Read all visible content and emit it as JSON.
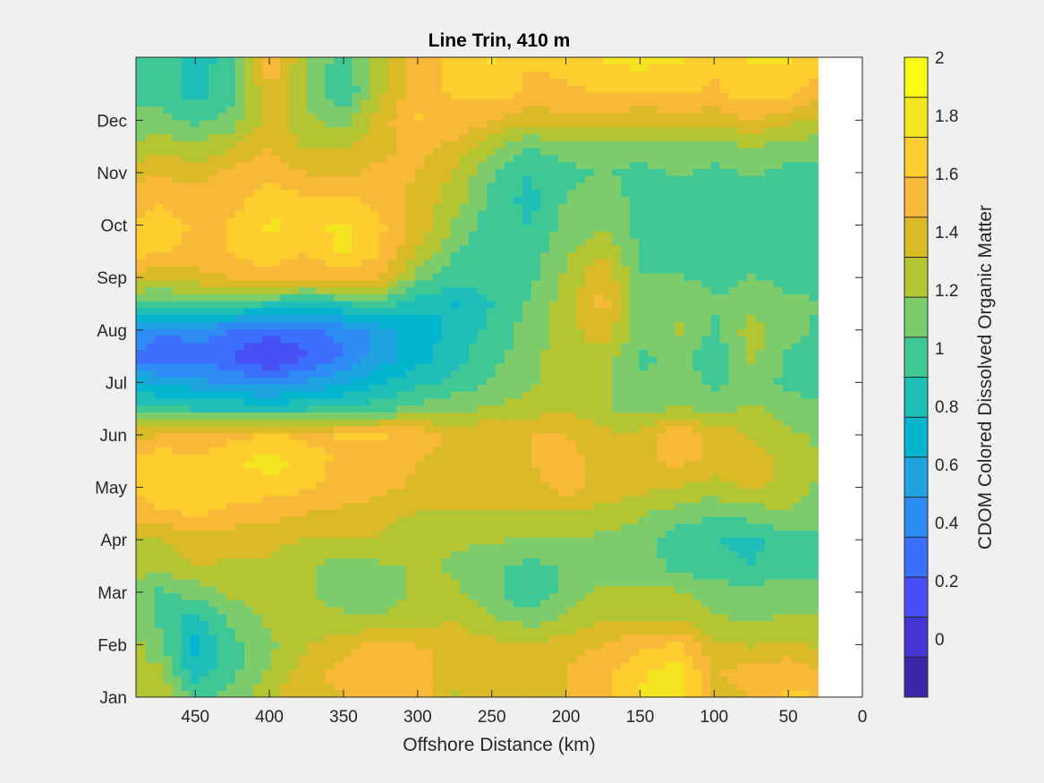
{
  "chart_data": {
    "type": "heatmap",
    "title": "Line Trin, 410 m",
    "xlabel": "Offshore Distance (km)",
    "ylabel": "",
    "colorbar_label": "CDOM Colored Dissolved Organic Matter",
    "x_axis": {
      "reversed": true,
      "xlim": [
        0,
        490
      ],
      "ticks": [
        450,
        400,
        350,
        300,
        250,
        200,
        150,
        100,
        50,
        0
      ],
      "tick_labels": [
        "450",
        "400",
        "350",
        "300",
        "250",
        "200",
        "150",
        "100",
        "50",
        "0"
      ]
    },
    "y_axis": {
      "ylim": [
        0.5,
        12.7
      ],
      "ticks": [
        0.5,
        1.5,
        2.5,
        3.5,
        4.5,
        5.5,
        6.5,
        7.5,
        8.5,
        9.5,
        10.5,
        11.5
      ],
      "tick_labels": [
        "Jan",
        "Feb",
        "Mar",
        "Apr",
        "May",
        "Jun",
        "Jul",
        "Aug",
        "Sep",
        "Oct",
        "Nov",
        "Dec"
      ]
    },
    "colorbar": {
      "clim": [
        -0.2,
        2.0
      ],
      "ticks": [
        0,
        0.2,
        0.4,
        0.6,
        0.8,
        1,
        1.2,
        1.4,
        1.6,
        1.8,
        2
      ],
      "tick_labels": [
        "0",
        "0.2",
        "0.4",
        "0.6",
        "0.8",
        "1",
        "1.2",
        "1.4",
        "1.6",
        "1.8",
        "2"
      ],
      "colormap": [
        "#3e26a8",
        "#4435d4",
        "#4650f4",
        "#3d6ffe",
        "#2e8cf5",
        "#1ea4e0",
        "#04b5d0",
        "#1fbfb8",
        "#3fc896",
        "#7ccc6c",
        "#b3c533",
        "#dbba27",
        "#f8b938",
        "#fece2e",
        "#f5e520",
        "#f9fb15"
      ]
    },
    "x": [
      30,
      50,
      75,
      100,
      125,
      150,
      175,
      200,
      225,
      250,
      275,
      300,
      325,
      350,
      375,
      400,
      425,
      450,
      475,
      490
    ],
    "y_months": [
      0.5,
      1.0,
      1.5,
      2.0,
      2.5,
      3.0,
      3.5,
      4.0,
      4.5,
      5.0,
      5.5,
      6.0,
      6.5,
      7.0,
      7.5,
      8.0,
      8.5,
      9.0,
      9.5,
      10.0,
      10.5,
      11.0,
      11.5,
      12.0,
      12.7
    ],
    "values": [
      [
        1.6,
        1.62,
        1.45,
        1.4,
        1.85,
        1.75,
        1.55,
        1.45,
        1.4,
        1.4,
        1.3,
        1.5,
        1.55,
        1.45,
        1.4,
        1.3,
        1.1,
        1.0,
        1.3,
        1.2
      ],
      [
        1.45,
        1.55,
        1.5,
        1.45,
        1.8,
        1.7,
        1.55,
        1.45,
        1.4,
        1.4,
        1.35,
        1.55,
        1.55,
        1.5,
        1.4,
        1.2,
        1.0,
        0.8,
        1.2,
        1.2
      ],
      [
        1.3,
        1.35,
        1.3,
        1.35,
        1.6,
        1.55,
        1.45,
        1.4,
        1.35,
        1.35,
        1.4,
        1.45,
        1.5,
        1.4,
        1.3,
        1.15,
        1.0,
        0.7,
        1.1,
        1.2
      ],
      [
        1.2,
        1.2,
        1.15,
        1.2,
        1.3,
        1.3,
        1.3,
        1.2,
        1.1,
        1.2,
        1.3,
        1.25,
        1.2,
        1.2,
        1.25,
        1.2,
        1.1,
        0.85,
        1.0,
        1.2
      ],
      [
        1.1,
        1.1,
        1.1,
        1.1,
        1.2,
        1.2,
        1.2,
        1.1,
        0.9,
        1.1,
        1.2,
        1.2,
        1.1,
        1.1,
        1.2,
        1.25,
        1.2,
        1.1,
        1.0,
        1.2
      ],
      [
        1.0,
        1.0,
        0.9,
        0.95,
        1.0,
        1.1,
        1.1,
        1.05,
        1.0,
        1.05,
        1.15,
        1.2,
        1.15,
        1.1,
        1.2,
        1.3,
        1.3,
        1.3,
        1.2,
        1.2
      ],
      [
        1.0,
        1.0,
        0.85,
        0.9,
        0.95,
        1.1,
        1.15,
        1.15,
        1.15,
        1.2,
        1.2,
        1.25,
        1.3,
        1.3,
        1.3,
        1.35,
        1.35,
        1.4,
        1.3,
        1.3
      ],
      [
        1.1,
        1.15,
        1.1,
        1.05,
        1.1,
        1.2,
        1.25,
        1.3,
        1.3,
        1.3,
        1.3,
        1.3,
        1.35,
        1.4,
        1.45,
        1.5,
        1.55,
        1.6,
        1.55,
        1.5
      ],
      [
        1.15,
        1.25,
        1.35,
        1.25,
        1.3,
        1.35,
        1.4,
        1.5,
        1.4,
        1.35,
        1.35,
        1.4,
        1.5,
        1.55,
        1.6,
        1.65,
        1.65,
        1.65,
        1.7,
        1.6
      ],
      [
        1.2,
        1.25,
        1.4,
        1.4,
        1.5,
        1.4,
        1.4,
        1.5,
        1.45,
        1.4,
        1.4,
        1.45,
        1.55,
        1.55,
        1.65,
        1.8,
        1.7,
        1.65,
        1.7,
        1.65
      ],
      [
        1.15,
        1.2,
        1.3,
        1.4,
        1.6,
        1.35,
        1.35,
        1.45,
        1.45,
        1.45,
        1.4,
        1.55,
        1.6,
        1.6,
        1.55,
        1.6,
        1.55,
        1.45,
        1.45,
        1.4
      ],
      [
        1.05,
        1.1,
        1.2,
        1.15,
        1.2,
        1.1,
        1.2,
        1.3,
        1.25,
        1.2,
        1.15,
        1.1,
        1.0,
        0.95,
        0.9,
        0.85,
        0.9,
        0.9,
        0.95,
        0.95
      ],
      [
        1.0,
        1.0,
        1.1,
        1.0,
        1.1,
        1.05,
        1.2,
        1.3,
        1.15,
        1.05,
        0.95,
        0.85,
        0.75,
        0.6,
        0.5,
        0.4,
        0.45,
        0.55,
        0.6,
        0.7
      ],
      [
        0.95,
        1.0,
        1.2,
        0.95,
        1.1,
        1.0,
        1.25,
        1.3,
        1.1,
        1.0,
        0.85,
        0.7,
        0.55,
        0.35,
        0.2,
        0.05,
        0.2,
        0.3,
        0.2,
        0.3
      ],
      [
        1.0,
        1.1,
        1.25,
        1.0,
        1.2,
        1.1,
        1.4,
        1.25,
        1.1,
        0.95,
        0.8,
        0.7,
        0.55,
        0.4,
        0.3,
        0.25,
        0.35,
        0.4,
        0.4,
        0.5
      ],
      [
        1.05,
        1.05,
        1.1,
        1.05,
        1.15,
        1.1,
        1.5,
        1.25,
        1.05,
        0.9,
        0.75,
        0.8,
        0.95,
        0.9,
        0.85,
        0.9,
        0.95,
        1.0,
        0.95,
        0.95
      ],
      [
        1.0,
        1.0,
        1.05,
        1.0,
        1.05,
        1.05,
        1.45,
        1.2,
        1.0,
        0.95,
        0.95,
        1.1,
        1.45,
        1.5,
        1.45,
        1.5,
        1.45,
        1.4,
        1.35,
        1.4
      ],
      [
        1.0,
        1.0,
        1.0,
        0.95,
        1.0,
        1.0,
        1.3,
        1.15,
        0.95,
        0.9,
        1.05,
        1.3,
        1.6,
        1.75,
        1.6,
        1.7,
        1.6,
        1.55,
        1.6,
        1.65
      ],
      [
        0.95,
        0.95,
        0.95,
        0.9,
        0.95,
        1.0,
        1.15,
        1.1,
        0.9,
        0.95,
        1.15,
        1.4,
        1.6,
        1.75,
        1.7,
        1.75,
        1.6,
        1.55,
        1.7,
        1.6
      ],
      [
        0.95,
        0.95,
        1.0,
        0.95,
        1.0,
        1.0,
        1.1,
        1.05,
        0.85,
        1.0,
        1.25,
        1.4,
        1.55,
        1.6,
        1.6,
        1.65,
        1.55,
        1.5,
        1.55,
        1.5
      ],
      [
        1.0,
        1.0,
        1.05,
        1.0,
        1.05,
        1.0,
        1.05,
        1.0,
        0.9,
        1.05,
        1.3,
        1.45,
        1.5,
        1.4,
        1.45,
        1.55,
        1.5,
        1.4,
        1.45,
        1.4
      ],
      [
        1.1,
        1.1,
        1.2,
        1.1,
        1.15,
        1.1,
        1.15,
        1.1,
        1.05,
        1.2,
        1.4,
        1.5,
        1.4,
        1.3,
        1.3,
        1.45,
        1.3,
        1.2,
        1.25,
        1.2
      ],
      [
        1.3,
        1.35,
        1.45,
        1.35,
        1.4,
        1.35,
        1.4,
        1.4,
        1.35,
        1.45,
        1.55,
        1.6,
        1.4,
        1.1,
        1.2,
        1.4,
        1.1,
        1.0,
        1.1,
        1.1
      ],
      [
        1.5,
        1.6,
        1.65,
        1.55,
        1.6,
        1.55,
        1.6,
        1.55,
        1.55,
        1.65,
        1.6,
        1.55,
        1.3,
        0.9,
        1.15,
        1.45,
        1.0,
        0.85,
        1.0,
        1.0
      ],
      [
        1.65,
        1.75,
        1.75,
        1.65,
        1.75,
        1.8,
        1.75,
        1.65,
        1.6,
        1.75,
        1.65,
        1.5,
        1.25,
        0.95,
        1.2,
        1.55,
        0.95,
        0.85,
        0.95,
        1.0
      ]
    ]
  }
}
